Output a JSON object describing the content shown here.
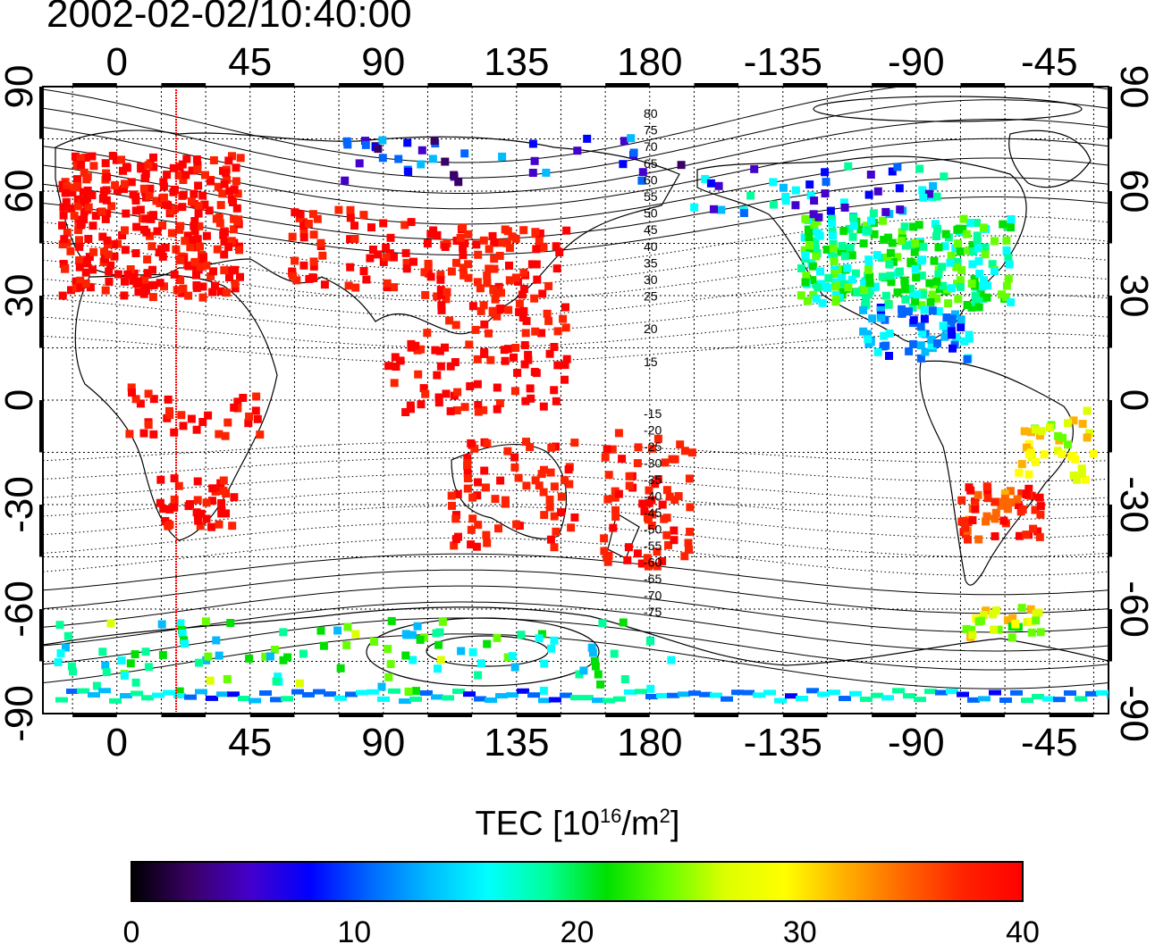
{
  "title": "2002-02-02/10:40:00",
  "map": {
    "top_ticks": [
      "0",
      "45",
      "90",
      "135",
      "180",
      "-135",
      "-90",
      "-45"
    ],
    "bottom_ticks": [
      "0",
      "45",
      "90",
      "135",
      "180",
      "-135",
      "-90",
      "-45"
    ],
    "left_ticks": [
      "90",
      "60",
      "30",
      "0",
      "-30",
      "-60",
      "-90"
    ],
    "right_ticks": [
      "90",
      "60",
      "30",
      "0",
      "-30",
      "-60",
      "-90"
    ],
    "terminator_longitude": 20,
    "contour_labels_north": [
      "80",
      "75",
      "70",
      "65",
      "60",
      "55",
      "50",
      "45",
      "40",
      "35",
      "30",
      "25",
      "20",
      "15"
    ],
    "contour_labels_south": [
      "-15",
      "-20",
      "-25",
      "-30",
      "-35",
      "-40",
      "-45",
      "-50",
      "-55",
      "-60",
      "-65",
      "-70",
      "-75"
    ]
  },
  "colorbar": {
    "title_main": "TEC  [10",
    "title_exp": "16",
    "title_unit": "/m",
    "title_exp2": "2",
    "title_close": "]",
    "ticks": [
      "0",
      "10",
      "20",
      "30",
      "40"
    ],
    "range": [
      0,
      40
    ],
    "colors": [
      "#000000",
      "#3a0066",
      "#4400cc",
      "#0000ff",
      "#0066ff",
      "#00bbff",
      "#00ffff",
      "#00ff99",
      "#00e000",
      "#66ff00",
      "#ddff00",
      "#ffff00",
      "#ffb000",
      "#ff6600",
      "#ff2200",
      "#ff0000"
    ]
  }
}
